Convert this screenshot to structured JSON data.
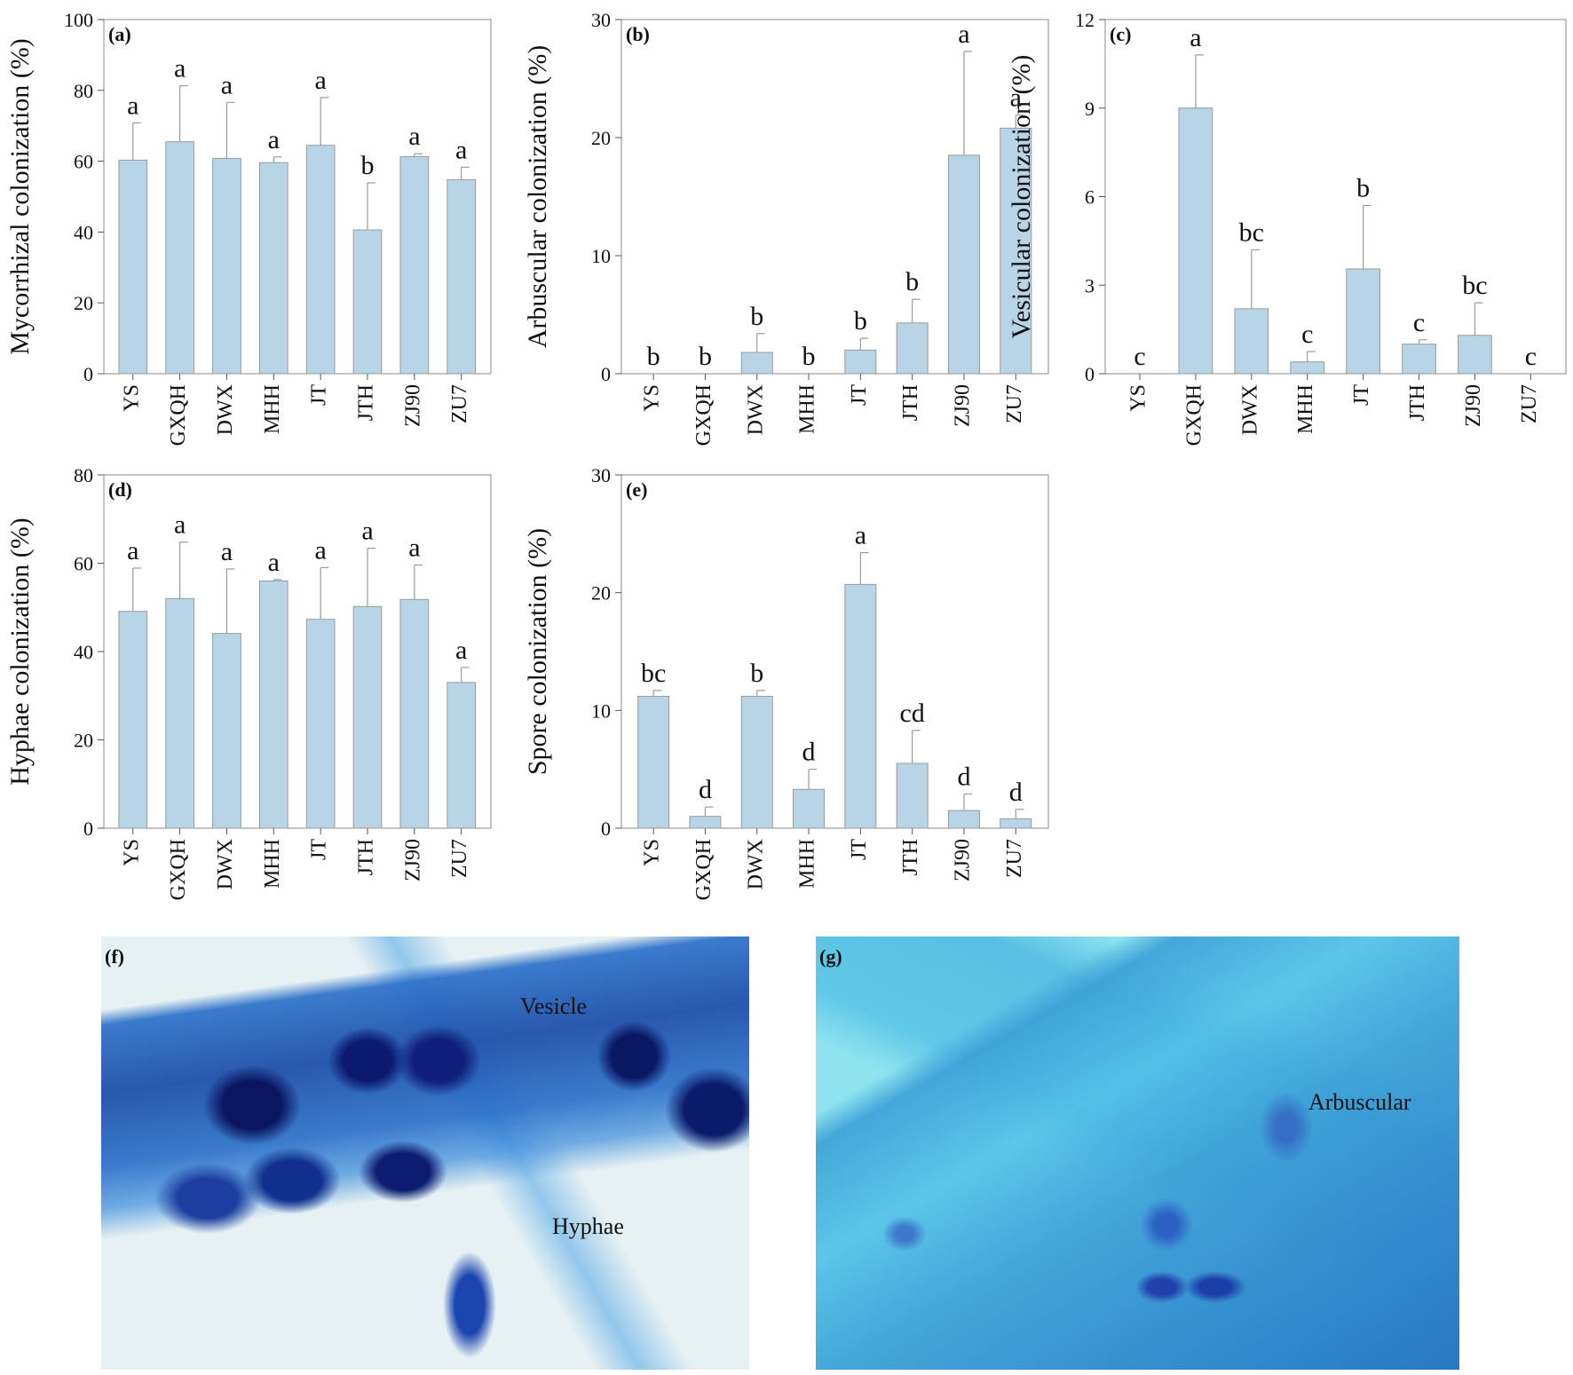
{
  "chart_data": [
    {
      "type": "bar",
      "panel_label": "(a)",
      "ylabel": "Mycorrhizal colonization (%)",
      "ylim": [
        0,
        100
      ],
      "yticks": [
        0,
        20,
        40,
        60,
        80,
        100
      ],
      "categories": [
        "YS",
        "GXQH",
        "DWX",
        "MHH",
        "JT",
        "JTH",
        "ZJ90",
        "ZU7"
      ],
      "values": [
        60.3,
        65.5,
        60.8,
        59.6,
        64.5,
        40.6,
        61.3,
        54.8
      ],
      "errors": [
        10.5,
        15.8,
        15.8,
        1.6,
        13.5,
        13.3,
        0.8,
        3.5
      ],
      "letters": [
        "a",
        "a",
        "a",
        "a",
        "a",
        "b",
        "a",
        "a"
      ],
      "bar_color": "#b8d5e7"
    },
    {
      "type": "bar",
      "panel_label": "(b)",
      "ylabel": "Arbuscular colonization (%)",
      "ylim": [
        0,
        30
      ],
      "yticks": [
        0,
        10,
        20,
        30
      ],
      "categories": [
        "YS",
        "GXQH",
        "DWX",
        "MHH",
        "JT",
        "JTH",
        "ZJ90",
        "ZU7"
      ],
      "values": [
        0,
        0,
        1.8,
        0,
        2.0,
        4.3,
        18.5,
        20.8
      ],
      "errors": [
        0,
        0,
        1.6,
        0,
        1.0,
        2.0,
        8.8,
        1.1
      ],
      "letters": [
        "b",
        "b",
        "b",
        "b",
        "b",
        "b",
        "a",
        "a"
      ],
      "bar_color": "#b8d5e7"
    },
    {
      "type": "bar",
      "panel_label": "(c)",
      "ylabel": "Vesicular colonization (%)",
      "ylim": [
        0,
        12
      ],
      "yticks": [
        0,
        3,
        6,
        9,
        12
      ],
      "categories": [
        "YS",
        "GXQH",
        "DWX",
        "MHH",
        "JT",
        "JTH",
        "ZJ90",
        "ZU7"
      ],
      "values": [
        0,
        9.0,
        2.2,
        0.4,
        3.55,
        1.0,
        1.3,
        0
      ],
      "errors": [
        0,
        1.8,
        2.0,
        0.35,
        2.15,
        0.15,
        1.1,
        0
      ],
      "letters": [
        "c",
        "a",
        "bc",
        "c",
        "b",
        "c",
        "bc",
        "c"
      ],
      "bar_color": "#b8d5e7"
    },
    {
      "type": "bar",
      "panel_label": "(d)",
      "ylabel": "Hyphae colonization (%)",
      "ylim": [
        0,
        80
      ],
      "yticks": [
        0,
        20,
        40,
        60,
        80
      ],
      "categories": [
        "YS",
        "GXQH",
        "DWX",
        "MHH",
        "JT",
        "JTH",
        "ZJ90",
        "ZU7"
      ],
      "values": [
        49.1,
        52.0,
        44.1,
        56.0,
        47.3,
        50.2,
        51.8,
        33.0
      ],
      "errors": [
        9.8,
        12.8,
        14.6,
        0.3,
        11.7,
        13.2,
        7.8,
        3.4
      ],
      "letters": [
        "a",
        "a",
        "a",
        "a",
        "a",
        "a",
        "a",
        "a"
      ],
      "bar_color": "#b8d5e7"
    },
    {
      "type": "bar",
      "panel_label": "(e)",
      "ylabel": "Spore colonization (%)",
      "ylim": [
        0,
        30
      ],
      "yticks": [
        0,
        10,
        20,
        30
      ],
      "categories": [
        "YS",
        "GXQH",
        "DWX",
        "MHH",
        "JT",
        "JTH",
        "ZJ90",
        "ZU7"
      ],
      "values": [
        11.2,
        1.0,
        11.2,
        3.3,
        20.7,
        5.5,
        1.5,
        0.8
      ],
      "errors": [
        0.5,
        0.8,
        0.5,
        1.7,
        2.7,
        2.8,
        1.4,
        0.8
      ],
      "letters": [
        "bc",
        "d",
        "b",
        "d",
        "a",
        "cd",
        "d",
        "d"
      ],
      "bar_color": "#b8d5e7"
    }
  ],
  "photos": {
    "f": {
      "label": "(f)",
      "annotations": [
        "Vesicle",
        "Hyphae"
      ]
    },
    "g": {
      "label": "(g)",
      "annotations": [
        "Arbuscular"
      ]
    }
  }
}
